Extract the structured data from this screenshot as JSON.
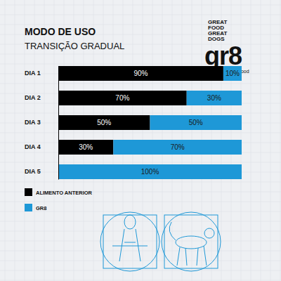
{
  "chart_data": {
    "type": "bar",
    "title": "MODO DE USO",
    "subtitle": "TRANSIÇÃO GRADUAL",
    "annotations": [
      "GREAT",
      "FOOD",
      "GREAT",
      "DOGS",
      "gr8",
      "Super Food"
    ],
    "categories": [
      "DIA 1",
      "DIA 2",
      "DIA 3",
      "DIA 4",
      "DIA 5"
    ],
    "series": [
      {
        "name": "ALIMENTO ANTERIOR",
        "color": "#000000",
        "values": [
          90,
          70,
          50,
          30,
          0
        ],
        "value_labels": [
          "90%",
          "70%",
          "50%",
          "30%",
          null
        ]
      },
      {
        "name": "GR8",
        "color": "#1e98d7",
        "values": [
          10,
          30,
          50,
          70,
          100
        ],
        "value_labels": [
          "10%",
          "30%",
          "50%",
          "70%",
          "100%"
        ]
      }
    ],
    "orientation": "horizontal",
    "stacked": true,
    "data_labels": true,
    "xlim": [
      0,
      100
    ],
    "tick_labels": "y",
    "legend": "bottom-left"
  }
}
